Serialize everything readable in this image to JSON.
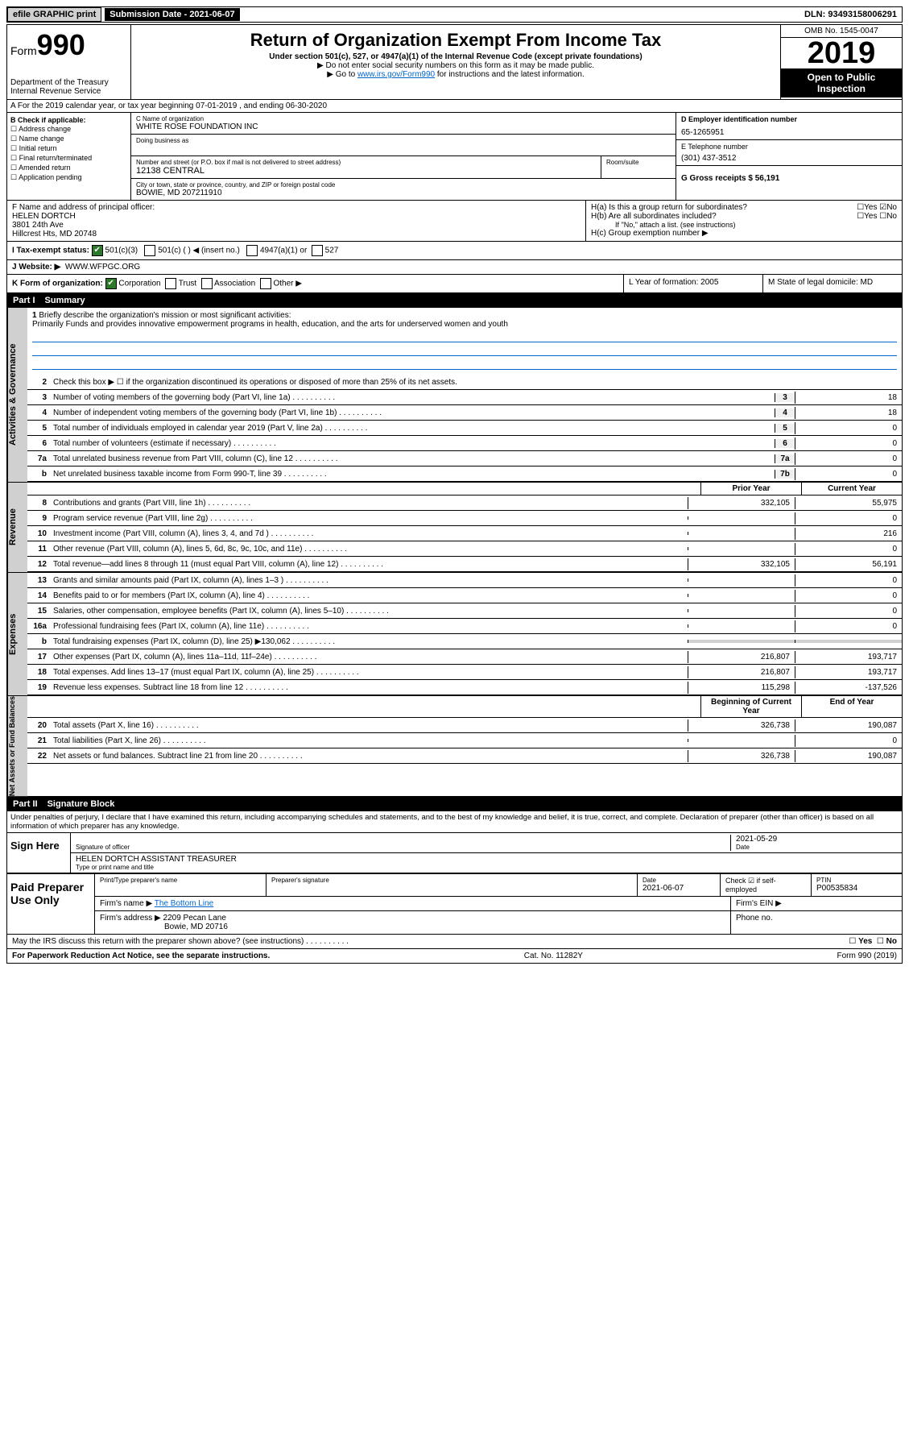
{
  "top": {
    "efile": "efile GRAPHIC print",
    "sub_label": "Submission Date - 2021-06-07",
    "dln": "DLN: 93493158006291"
  },
  "header": {
    "form_prefix": "Form",
    "form_num": "990",
    "dept": "Department of the Treasury\nInternal Revenue Service",
    "title": "Return of Organization Exempt From Income Tax",
    "sub": "Under section 501(c), 527, or 4947(a)(1) of the Internal Revenue Code (except private foundations)",
    "note1": "▶ Do not enter social security numbers on this form as it may be made public.",
    "note2_pre": "▶ Go to ",
    "note2_link": "www.irs.gov/Form990",
    "note2_post": " for instructions and the latest information.",
    "omb": "OMB No. 1545-0047",
    "year": "2019",
    "open": "Open to Public Inspection"
  },
  "row_a": "A For the 2019 calendar year, or tax year beginning 07-01-2019    , and ending 06-30-2020",
  "col_b": {
    "title": "B Check if applicable:",
    "items": [
      "Address change",
      "Name change",
      "Initial return",
      "Final return/terminated",
      "Amended return",
      "Application pending"
    ]
  },
  "col_c": {
    "name_label": "C Name of organization",
    "name": "WHITE ROSE FOUNDATION INC",
    "dba_label": "Doing business as",
    "addr_label": "Number and street (or P.O. box if mail is not delivered to street address)",
    "room_label": "Room/suite",
    "addr": "12138 CENTRAL",
    "city_label": "City or town, state or province, country, and ZIP or foreign postal code",
    "city": "BOWIE, MD  207211910"
  },
  "col_right": {
    "d_label": "D Employer identification number",
    "d_val": "65-1265951",
    "e_label": "E Telephone number",
    "e_val": "(301) 437-3512",
    "g_label": "G Gross receipts $ 56,191"
  },
  "officer": {
    "f_label": "F Name and address of principal officer:",
    "name": "HELEN DORTCH",
    "addr1": "3801 24th Ave",
    "addr2": "Hillcrest Hts, MD  20748"
  },
  "h": {
    "a": "H(a)  Is this a group return for subordinates?",
    "b": "H(b)  Are all subordinates included?",
    "b_note": "If \"No,\" attach a list. (see instructions)",
    "c": "H(c)  Group exemption number ▶"
  },
  "tax_status": {
    "i_label": "I  Tax-exempt status:",
    "opt1": "501(c)(3)",
    "opt2": "501(c) (  ) ◀ (insert no.)",
    "opt3": "4947(a)(1) or",
    "opt4": "527"
  },
  "website": {
    "label": "J  Website: ▶",
    "val": "WWW.WFPGC.ORG"
  },
  "k_row": {
    "k": "K Form of organization:",
    "opts": [
      "Corporation",
      "Trust",
      "Association",
      "Other ▶"
    ],
    "l": "L Year of formation: 2005",
    "m": "M State of legal domicile: MD"
  },
  "part1": {
    "label": "Part I",
    "title": "Summary"
  },
  "briefly": {
    "num": "1",
    "label": "Briefly describe the organization's mission or most significant activities:",
    "text": "Primarily Funds and provides innovative empowerment programs in health, education, and the arts for underserved women and youth"
  },
  "gov_lines": [
    {
      "n": "2",
      "d": "Check this box ▶ ☐  if the organization discontinued its operations or disposed of more than 25% of its net assets."
    },
    {
      "n": "3",
      "d": "Number of voting members of the governing body (Part VI, line 1a)",
      "r": "3",
      "v": "18"
    },
    {
      "n": "4",
      "d": "Number of independent voting members of the governing body (Part VI, line 1b)",
      "r": "4",
      "v": "18"
    },
    {
      "n": "5",
      "d": "Total number of individuals employed in calendar year 2019 (Part V, line 2a)",
      "r": "5",
      "v": "0"
    },
    {
      "n": "6",
      "d": "Total number of volunteers (estimate if necessary)",
      "r": "6",
      "v": "0"
    },
    {
      "n": "7a",
      "d": "Total unrelated business revenue from Part VIII, column (C), line 12",
      "r": "7a",
      "v": "0"
    },
    {
      "n": "b",
      "d": "Net unrelated business taxable income from Form 990-T, line 39",
      "r": "7b",
      "v": "0"
    }
  ],
  "year_hdr": {
    "prior": "Prior Year",
    "current": "Current Year"
  },
  "rev_lines": [
    {
      "n": "8",
      "d": "Contributions and grants (Part VIII, line 1h)",
      "p": "332,105",
      "c": "55,975"
    },
    {
      "n": "9",
      "d": "Program service revenue (Part VIII, line 2g)",
      "p": "",
      "c": "0"
    },
    {
      "n": "10",
      "d": "Investment income (Part VIII, column (A), lines 3, 4, and 7d )",
      "p": "",
      "c": "216"
    },
    {
      "n": "11",
      "d": "Other revenue (Part VIII, column (A), lines 5, 6d, 8c, 9c, 10c, and 11e)",
      "p": "",
      "c": "0"
    },
    {
      "n": "12",
      "d": "Total revenue—add lines 8 through 11 (must equal Part VIII, column (A), line 12)",
      "p": "332,105",
      "c": "56,191"
    }
  ],
  "exp_lines": [
    {
      "n": "13",
      "d": "Grants and similar amounts paid (Part IX, column (A), lines 1–3 )",
      "p": "",
      "c": "0"
    },
    {
      "n": "14",
      "d": "Benefits paid to or for members (Part IX, column (A), line 4)",
      "p": "",
      "c": "0"
    },
    {
      "n": "15",
      "d": "Salaries, other compensation, employee benefits (Part IX, column (A), lines 5–10)",
      "p": "",
      "c": "0"
    },
    {
      "n": "16a",
      "d": "Professional fundraising fees (Part IX, column (A), line 11e)",
      "p": "",
      "c": "0"
    },
    {
      "n": "b",
      "d": "Total fundraising expenses (Part IX, column (D), line 25) ▶130,062",
      "p": "",
      "c": "",
      "shade": true
    },
    {
      "n": "17",
      "d": "Other expenses (Part IX, column (A), lines 11a–11d, 11f–24e)",
      "p": "216,807",
      "c": "193,717"
    },
    {
      "n": "18",
      "d": "Total expenses. Add lines 13–17 (must equal Part IX, column (A), line 25)",
      "p": "216,807",
      "c": "193,717"
    },
    {
      "n": "19",
      "d": "Revenue less expenses. Subtract line 18 from line 12",
      "p": "115,298",
      "c": "-137,526"
    }
  ],
  "net_hdr": {
    "begin": "Beginning of Current Year",
    "end": "End of Year"
  },
  "net_lines": [
    {
      "n": "20",
      "d": "Total assets (Part X, line 16)",
      "p": "326,738",
      "c": "190,087"
    },
    {
      "n": "21",
      "d": "Total liabilities (Part X, line 26)",
      "p": "",
      "c": "0"
    },
    {
      "n": "22",
      "d": "Net assets or fund balances. Subtract line 21 from line 20",
      "p": "326,738",
      "c": "190,087"
    }
  ],
  "part2": {
    "label": "Part II",
    "title": "Signature Block"
  },
  "perjury": "Under penalties of perjury, I declare that I have examined this return, including accompanying schedules and statements, and to the best of my knowledge and belief, it is true, correct, and complete. Declaration of preparer (other than officer) is based on all information of which preparer has any knowledge.",
  "sign": {
    "label": "Sign Here",
    "sig_label": "Signature of officer",
    "date": "2021-05-29",
    "date_label": "Date",
    "name": "HELEN DORTCH  ASSISTANT TREASURER",
    "name_label": "Type or print name and title"
  },
  "paid": {
    "label": "Paid Preparer Use Only",
    "c1": "Print/Type preparer's name",
    "c2": "Preparer's signature",
    "c3": "Date",
    "c3v": "2021-06-07",
    "c4": "Check ☑ if self-employed",
    "c5": "PTIN",
    "c5v": "P00535834",
    "firm_label": "Firm's name    ▶",
    "firm": "The Bottom Line",
    "ein": "Firm's EIN ▶",
    "addr_label": "Firm's address ▶",
    "addr": "2209 Pecan Lane",
    "addr2": "Bowie, MD  20716",
    "phone": "Phone no."
  },
  "discuss": "May the IRS discuss this return with the preparer shown above? (see instructions)",
  "footer": {
    "left": "For Paperwork Reduction Act Notice, see the separate instructions.",
    "mid": "Cat. No. 11282Y",
    "right": "Form 990 (2019)"
  }
}
